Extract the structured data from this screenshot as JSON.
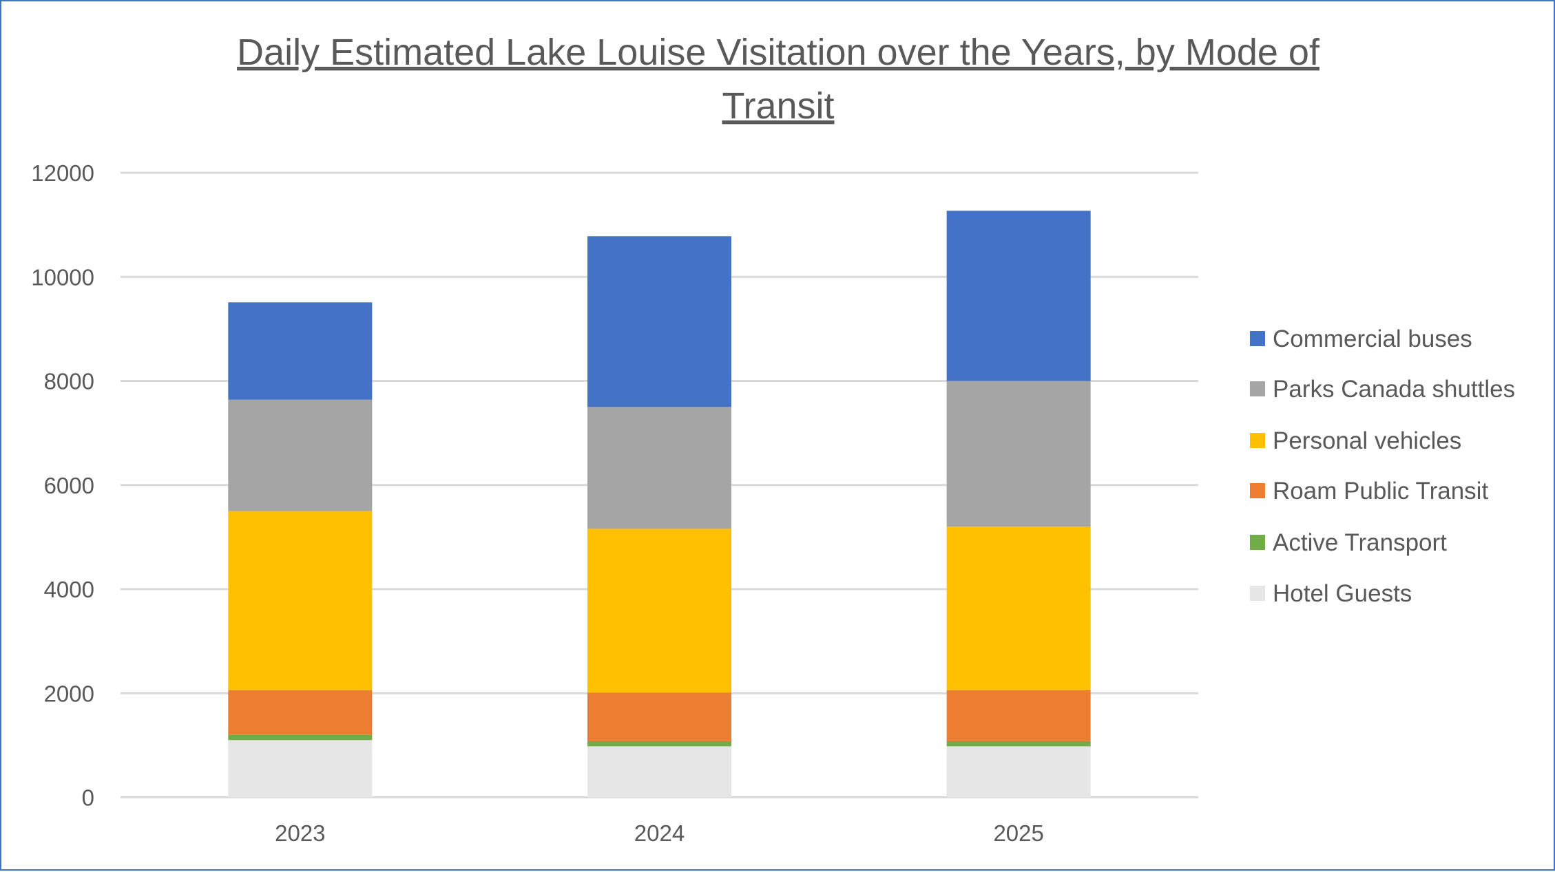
{
  "chart_data": {
    "type": "bar",
    "stacked": true,
    "title": "Daily Estimated Lake Louise Visitation over the Years, by Mode of Transit",
    "title_lines": [
      "Daily Estimated Lake Louise Visitation over the Years, by Mode of",
      "Transit"
    ],
    "xlabel": "",
    "ylabel": "",
    "categories": [
      "2023",
      "2024",
      "2025"
    ],
    "ylim": [
      0,
      12000
    ],
    "yticks": [
      0,
      2000,
      4000,
      6000,
      8000,
      10000,
      12000
    ],
    "grid": true,
    "legend_position": "right",
    "series": [
      {
        "name": "Hotel Guests",
        "color": "#E7E6E6",
        "values": [
          1100,
          980,
          980
        ]
      },
      {
        "name": "Active Transport",
        "color": "#70AD47",
        "values": [
          100,
          100,
          100
        ]
      },
      {
        "name": "Roam Public Transit",
        "color": "#ED7D31",
        "values": [
          860,
          930,
          980
        ]
      },
      {
        "name": "Personal vehicles",
        "color": "#FFC000",
        "values": [
          3440,
          3150,
          3140
        ]
      },
      {
        "name": "Parks Canada shuttles",
        "color": "#A5A5A5",
        "values": [
          2140,
          2340,
          2800
        ]
      },
      {
        "name": "Commercial buses",
        "color": "#4472C4",
        "values": [
          1870,
          3280,
          3270
        ]
      }
    ],
    "legend_order": [
      "Commercial buses",
      "Parks Canada shuttles",
      "Personal vehicles",
      "Roam Public Transit",
      "Active Transport",
      "Hotel Guests"
    ]
  }
}
